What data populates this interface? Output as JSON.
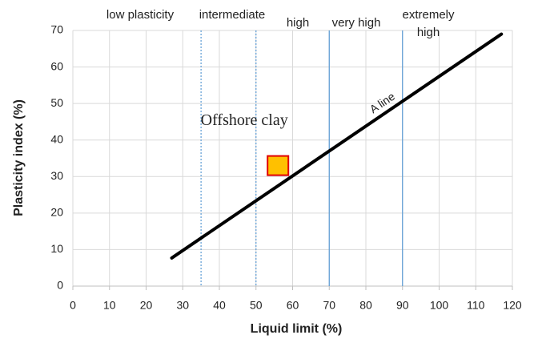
{
  "chart_data": {
    "type": "scatter",
    "x_label": "Liquid limit (%)",
    "y_label": "Plasticity index (%)",
    "xlim": [
      0,
      120
    ],
    "xticks": [
      0,
      10,
      20,
      30,
      40,
      50,
      60,
      70,
      80,
      90,
      100,
      110,
      120
    ],
    "ylim": [
      0,
      70
    ],
    "yticks": [
      0,
      10,
      20,
      30,
      40,
      50,
      60,
      70
    ],
    "grid": true,
    "boundaries": [
      {
        "value": 35,
        "dashed": true
      },
      {
        "value": 50,
        "dashed": true
      },
      {
        "value": 70,
        "dashed": false
      },
      {
        "value": 90,
        "dashed": false
      }
    ],
    "zones": [
      "low plasticity",
      "intermediate",
      "high",
      "very high",
      "extremely high"
    ],
    "series": [
      {
        "name": "A line",
        "kind": "line",
        "color": "#000000",
        "x": [
          27,
          117
        ],
        "values": [
          7.7,
          69
        ]
      },
      {
        "name": "Offshore clay",
        "kind": "marker",
        "color": "#ffc000",
        "edge": "#e00000",
        "x": [
          56
        ],
        "values": [
          33
        ]
      }
    ]
  }
}
